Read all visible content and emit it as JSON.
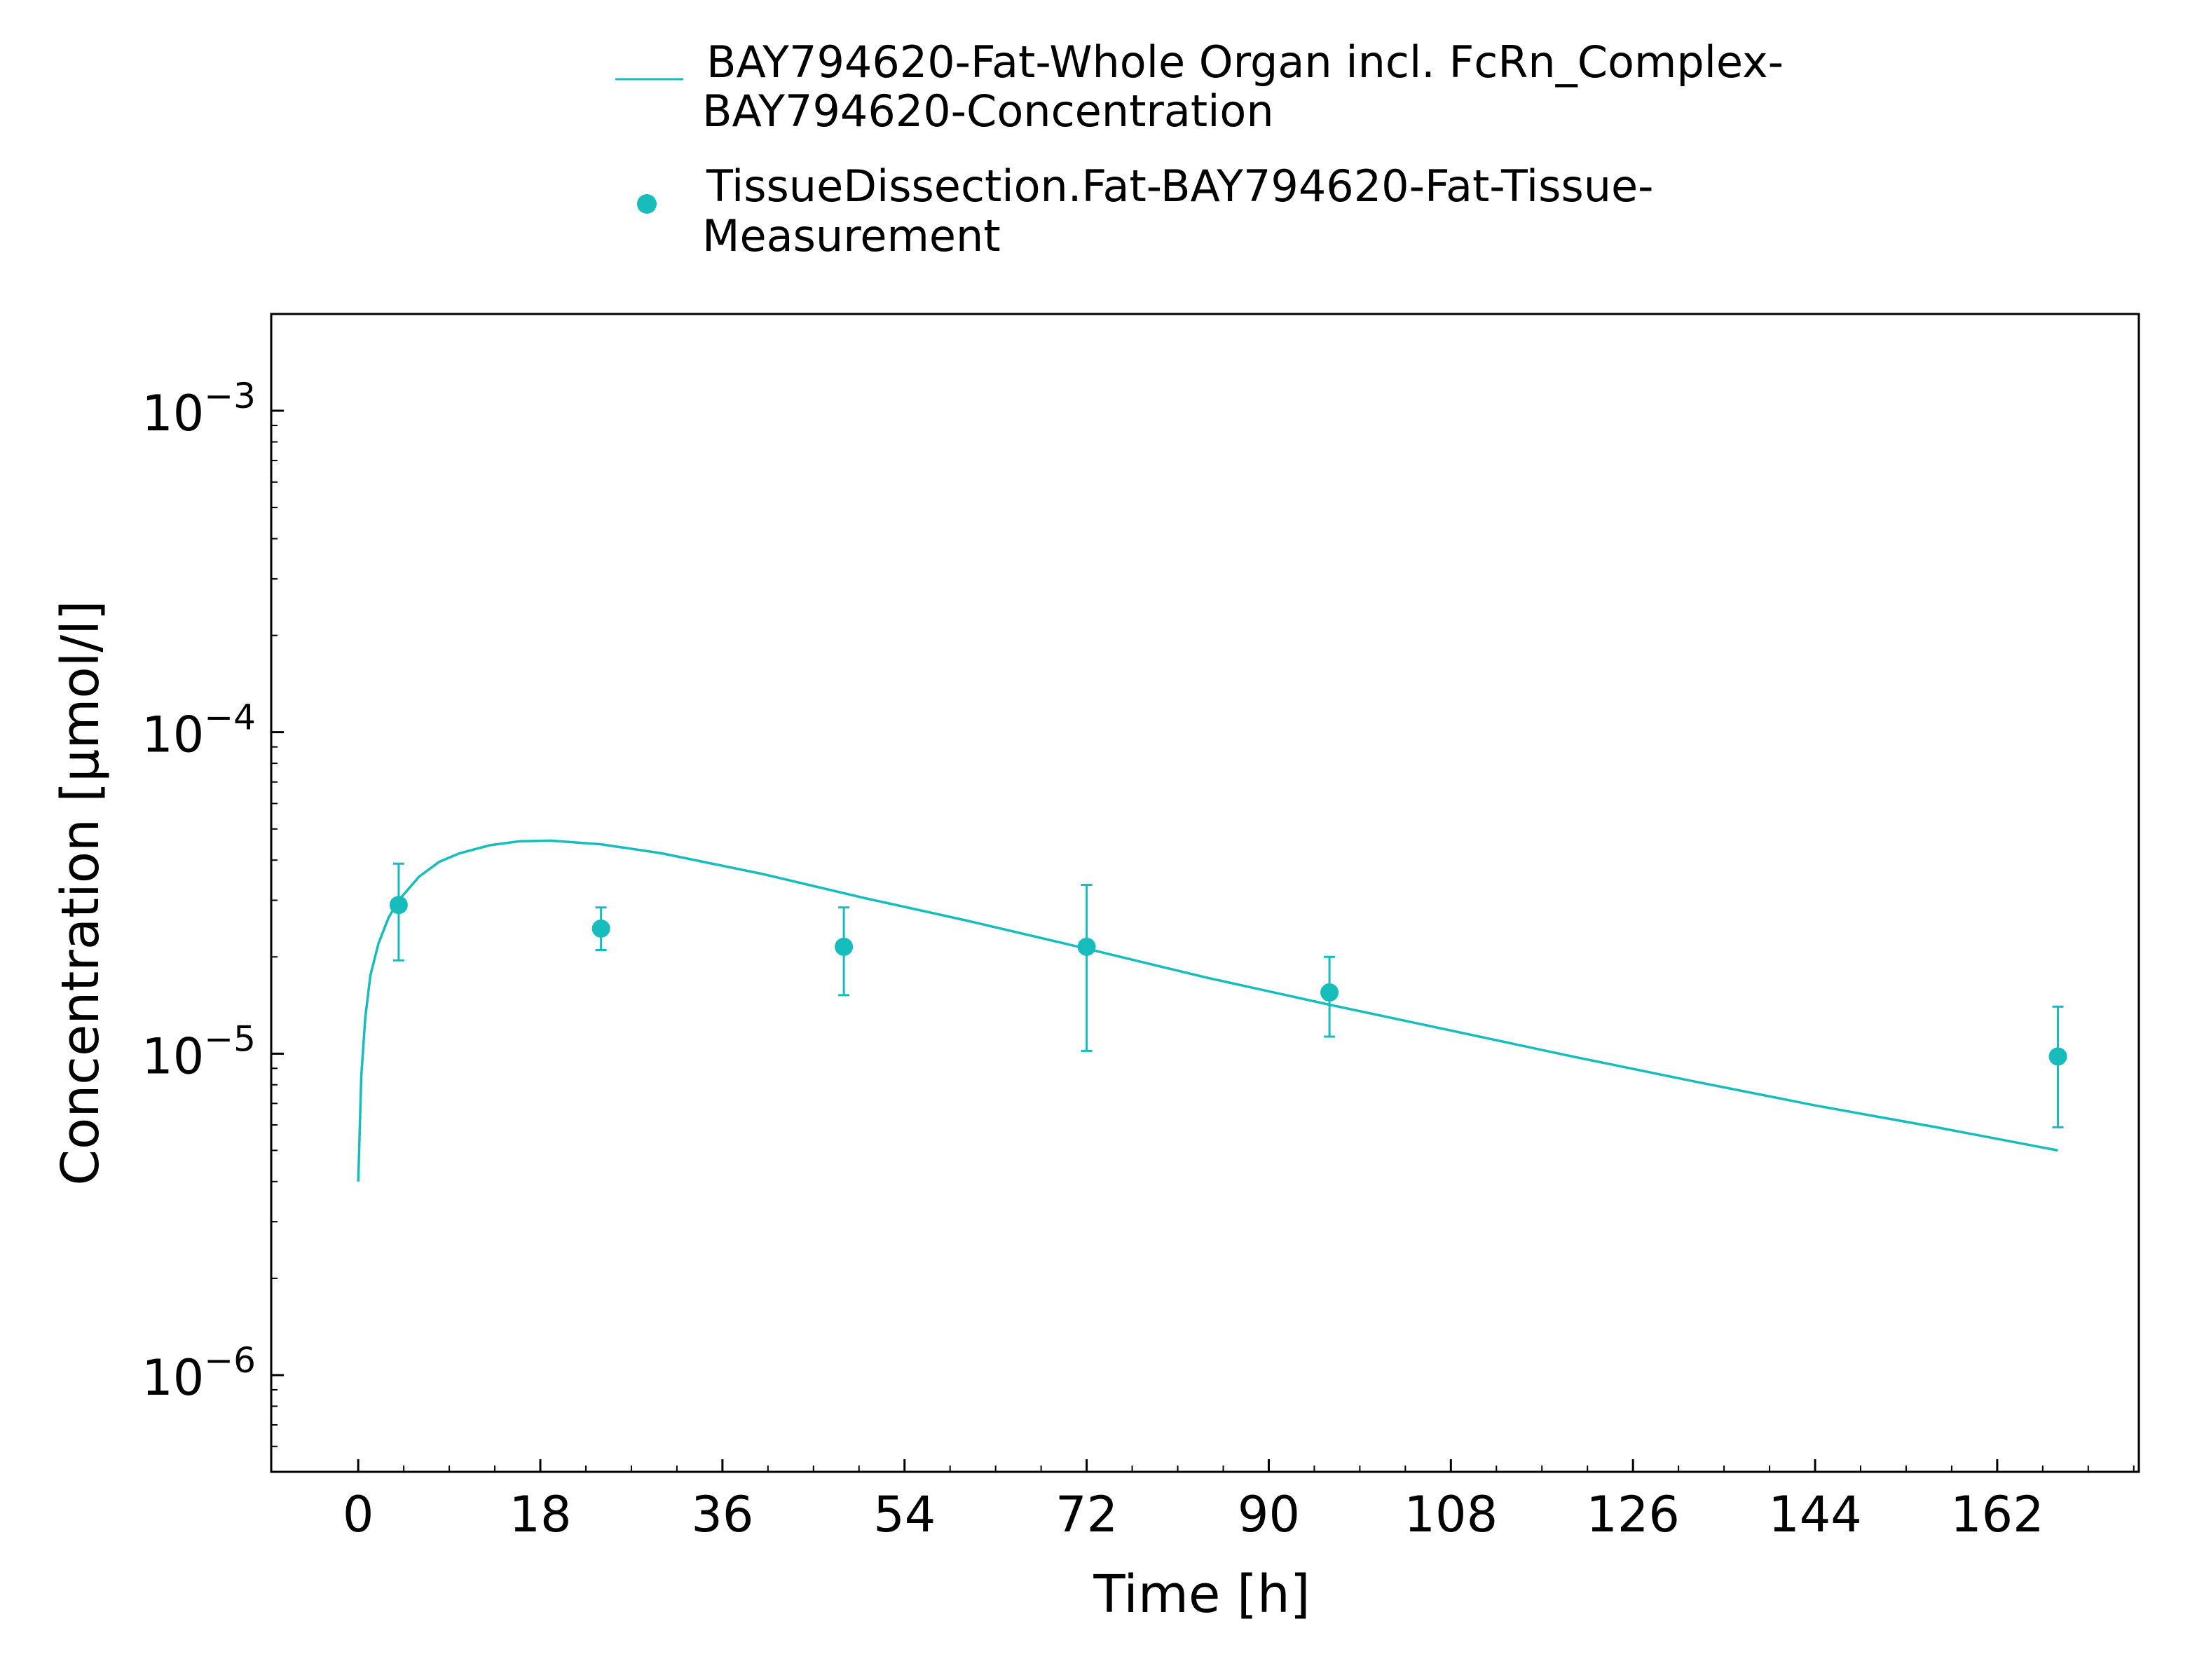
{
  "chart_data": {
    "type": "scatter",
    "xlabel": "Time [h]",
    "ylabel": "Concentration [µmol/l]",
    "xlim": [
      -8.6,
      176
    ],
    "ylim": [
      5e-07,
      0.002
    ],
    "yscale": "log",
    "x_ticks": [
      0,
      18,
      36,
      54,
      72,
      90,
      108,
      126,
      144,
      162
    ],
    "x_tick_labels": [
      "0",
      "18",
      "36",
      "54",
      "72",
      "90",
      "108",
      "126",
      "144",
      "162"
    ],
    "y_ticks": [
      {
        "value": 1e-06,
        "base": "10",
        "exp": "−6"
      },
      {
        "value": 1e-05,
        "base": "10",
        "exp": "−5"
      },
      {
        "value": 0.0001,
        "base": "10",
        "exp": "−4"
      },
      {
        "value": 0.001,
        "base": "10",
        "exp": "−3"
      }
    ],
    "grid": false,
    "legend_position": "top-center",
    "color": "#17BDBD",
    "series": [
      {
        "name_lines": [
          "BAY794620-Fat-Whole Organ incl. FcRn_Complex-",
          "BAY794620-Concentration"
        ],
        "kind": "line",
        "x": [
          0,
          0.3,
          0.7,
          1.2,
          2,
          3,
          4,
          6,
          8,
          10,
          13,
          16,
          19,
          24,
          30,
          40,
          50,
          60,
          72,
          84,
          96,
          108,
          120,
          132,
          144,
          156,
          168
        ],
        "y": [
          4e-06,
          8.5e-06,
          1.3e-05,
          1.75e-05,
          2.2e-05,
          2.65e-05,
          3e-05,
          3.55e-05,
          3.95e-05,
          4.2e-05,
          4.45e-05,
          4.58e-05,
          4.6e-05,
          4.48e-05,
          4.2e-05,
          3.62e-05,
          3.05e-05,
          2.6e-05,
          2.12e-05,
          1.72e-05,
          1.42e-05,
          1.18e-05,
          9.8e-06,
          8.2e-06,
          6.9e-06,
          5.9e-06,
          5e-06
        ]
      },
      {
        "name_lines": [
          "TissueDissection.Fat-BAY794620-Fat-Tissue-",
          "Measurement"
        ],
        "kind": "scatter",
        "x": [
          4,
          24,
          48,
          72,
          96,
          168
        ],
        "y": [
          2.9e-05,
          2.45e-05,
          2.15e-05,
          2.15e-05,
          1.55e-05,
          9.8e-06
        ],
        "y_err_low": [
          1.95e-05,
          2.1e-05,
          1.52e-05,
          1.02e-05,
          1.13e-05,
          5.9e-06
        ],
        "y_err_high": [
          3.9e-05,
          2.85e-05,
          2.85e-05,
          3.35e-05,
          2e-05,
          1.4e-05
        ]
      }
    ]
  }
}
